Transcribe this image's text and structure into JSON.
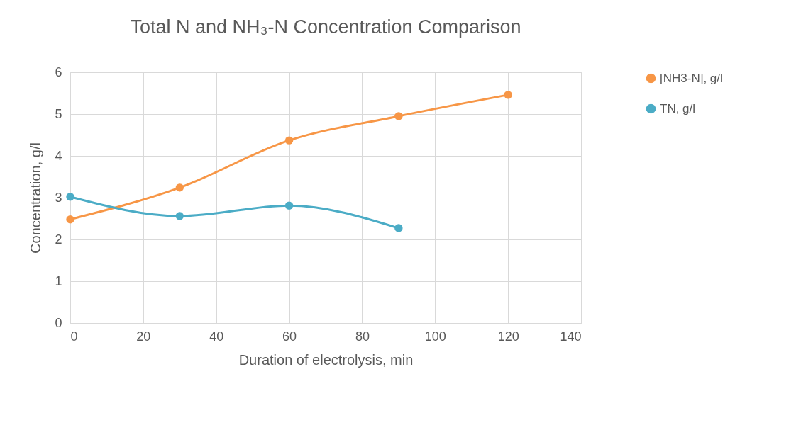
{
  "chart_data": {
    "type": "line",
    "title": "Total N and NH₃-N Concentration Comparison",
    "xlabel": "Duration of electrolysis, min",
    "ylabel": "Concentration, g/l",
    "x": [
      0,
      30,
      60,
      90,
      120
    ],
    "series": [
      {
        "name": "[NH3-N], g/l",
        "color": "#f79646",
        "values": [
          2.48,
          3.24,
          4.37,
          4.95,
          5.46
        ]
      },
      {
        "name": "TN, g/l",
        "color": "#4bacc6",
        "x": [
          0,
          30,
          60,
          90
        ],
        "values": [
          3.02,
          2.56,
          2.81,
          2.27
        ]
      }
    ],
    "xlim": [
      0,
      140
    ],
    "xticks": [
      0,
      20,
      40,
      60,
      80,
      100,
      120,
      140
    ],
    "ylim": [
      0,
      6
    ],
    "yticks": [
      0,
      1,
      2,
      3,
      4,
      5,
      6
    ],
    "grid": true,
    "legend": "right",
    "marker": "circle",
    "line_style": "solid"
  }
}
